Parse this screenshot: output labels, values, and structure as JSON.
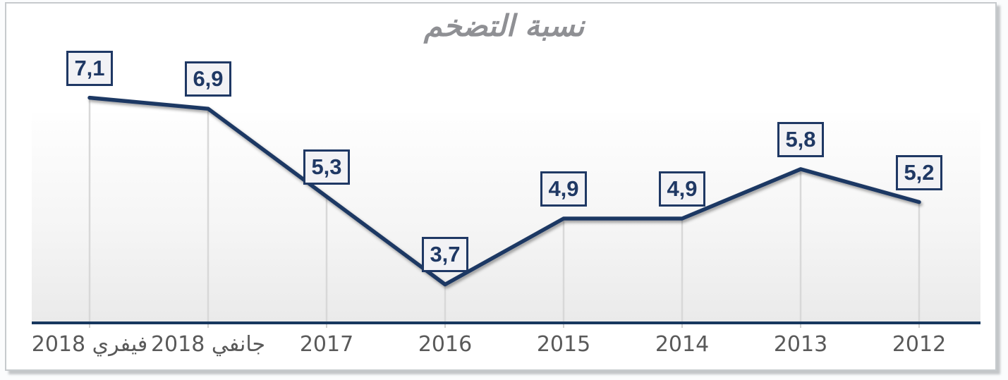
{
  "chart_data": {
    "type": "line",
    "title": "نسبة التضخم",
    "rtl": true,
    "x_order_note": "RTL chart: oldest year (2012) at the right edge, فيفري 2018 at the left",
    "categories": [
      "فيفري 2018",
      "جانفي 2018",
      "2017",
      "2016",
      "2015",
      "2014",
      "2013",
      "2012"
    ],
    "values": [
      7.1,
      6.9,
      5.3,
      3.7,
      4.9,
      4.9,
      5.8,
      5.2
    ],
    "value_labels": [
      "7,1",
      "6,9",
      "5,3",
      "3,7",
      "4,9",
      "4,9",
      "5,8",
      "5,2"
    ],
    "xlabel": "",
    "ylabel": "",
    "ylim": [
      3,
      8
    ],
    "legend": "none",
    "grid": "vertical-drop-lines-from-points-to-x-axis",
    "colors": {
      "line": "#1F3864",
      "data_label_text": "#1F3864",
      "data_label_fill": "#F2F2F5",
      "data_label_border": "#1F3864",
      "axis_line": "#17375E",
      "drop_line": "#D8D8D8",
      "tick": "#CFCFCF",
      "title_text": "#8F9094",
      "category_text": "#595959"
    }
  }
}
